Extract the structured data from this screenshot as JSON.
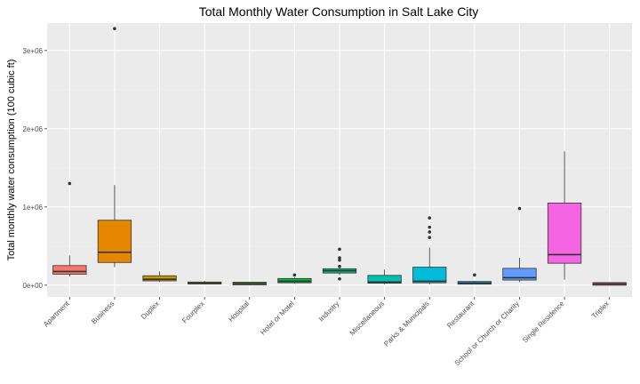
{
  "chart_data": {
    "type": "boxplot",
    "title": "Total Monthly Water Consumption in Salt Lake City",
    "xlabel": "",
    "ylabel": "Total monthly water consumption (100 cubic ft)",
    "ylim": [
      -150000,
      3350000
    ],
    "y_ticks": [
      {
        "value": 0,
        "label": "0e+00"
      },
      {
        "value": 1000000,
        "label": "1e+06"
      },
      {
        "value": 2000000,
        "label": "2e+06"
      },
      {
        "value": 3000000,
        "label": "3e+06"
      }
    ],
    "grid": true,
    "legend": "none",
    "categories": [
      "Apartment",
      "Business",
      "Duplex",
      "Fourplex",
      "Hospital",
      "Hotel or Motel",
      "Industry",
      "Miscellaneous",
      "Parks & Municipals",
      "Restaurant",
      "School or Church or Charity",
      "Single Residence",
      "Triplex"
    ],
    "boxes": [
      {
        "category": "Apartment",
        "color": "#F8766D",
        "q1": 140000,
        "median": 175000,
        "q3": 250000,
        "whisker_low": 110000,
        "whisker_high": 380000,
        "outliers": [
          1300000
        ]
      },
      {
        "category": "Business",
        "color": "#E58700",
        "q1": 290000,
        "median": 420000,
        "q3": 830000,
        "whisker_low": 230000,
        "whisker_high": 1280000,
        "outliers": [
          3280000
        ]
      },
      {
        "category": "Duplex",
        "color": "#C99800",
        "q1": 55000,
        "median": 75000,
        "q3": 120000,
        "whisker_low": 40000,
        "whisker_high": 175000,
        "outliers": []
      },
      {
        "category": "Fourplex",
        "color": "#A3A500",
        "q1": 15000,
        "median": 25000,
        "q3": 40000,
        "whisker_low": 10000,
        "whisker_high": 55000,
        "outliers": []
      },
      {
        "category": "Hospital",
        "color": "#6BB100",
        "q1": 12000,
        "median": 20000,
        "q3": 30000,
        "whisker_low": 8000,
        "whisker_high": 40000,
        "outliers": []
      },
      {
        "category": "Hotel or Motel",
        "color": "#00BA38",
        "q1": 30000,
        "median": 50000,
        "q3": 85000,
        "whisker_low": 20000,
        "whisker_high": 100000,
        "outliers": [
          130000
        ]
      },
      {
        "category": "Industry",
        "color": "#00BF7D",
        "q1": 155000,
        "median": 185000,
        "q3": 210000,
        "whisker_low": 130000,
        "whisker_high": 260000,
        "outliers": [
          80000,
          240000,
          320000,
          350000,
          460000
        ]
      },
      {
        "category": "Miscellaneous",
        "color": "#00C0AF",
        "q1": 25000,
        "median": 40000,
        "q3": 125000,
        "whisker_low": 10000,
        "whisker_high": 200000,
        "outliers": []
      },
      {
        "category": "Parks & Municipals",
        "color": "#00BCD8",
        "q1": 30000,
        "median": 50000,
        "q3": 230000,
        "whisker_low": 10000,
        "whisker_high": 480000,
        "outliers": [
          610000,
          680000,
          740000,
          860000
        ]
      },
      {
        "category": "Restaurant",
        "color": "#00B0F6",
        "q1": 20000,
        "median": 27000,
        "q3": 40000,
        "whisker_low": 15000,
        "whisker_high": 55000,
        "outliers": [
          130000
        ]
      },
      {
        "category": "School or Church or Charity",
        "color": "#619CFF",
        "q1": 65000,
        "median": 95000,
        "q3": 215000,
        "whisker_low": 40000,
        "whisker_high": 350000,
        "outliers": [
          980000
        ]
      },
      {
        "category": "Single Residence",
        "color": "#F564E3",
        "q1": 280000,
        "median": 390000,
        "q3": 1050000,
        "whisker_low": 70000,
        "whisker_high": 1710000,
        "outliers": []
      },
      {
        "category": "Triplex",
        "color": "#FF64B0",
        "q1": 10000,
        "median": 15000,
        "q3": 22000,
        "whisker_low": 5000,
        "whisker_high": 30000,
        "outliers": []
      }
    ],
    "colors": {
      "panel_background": "#EBEBEB",
      "grid_major": "#FFFFFF",
      "grid_minor": "#F2F2F2",
      "box_line": "#333333",
      "tick_label": "#4d4d4d"
    }
  }
}
